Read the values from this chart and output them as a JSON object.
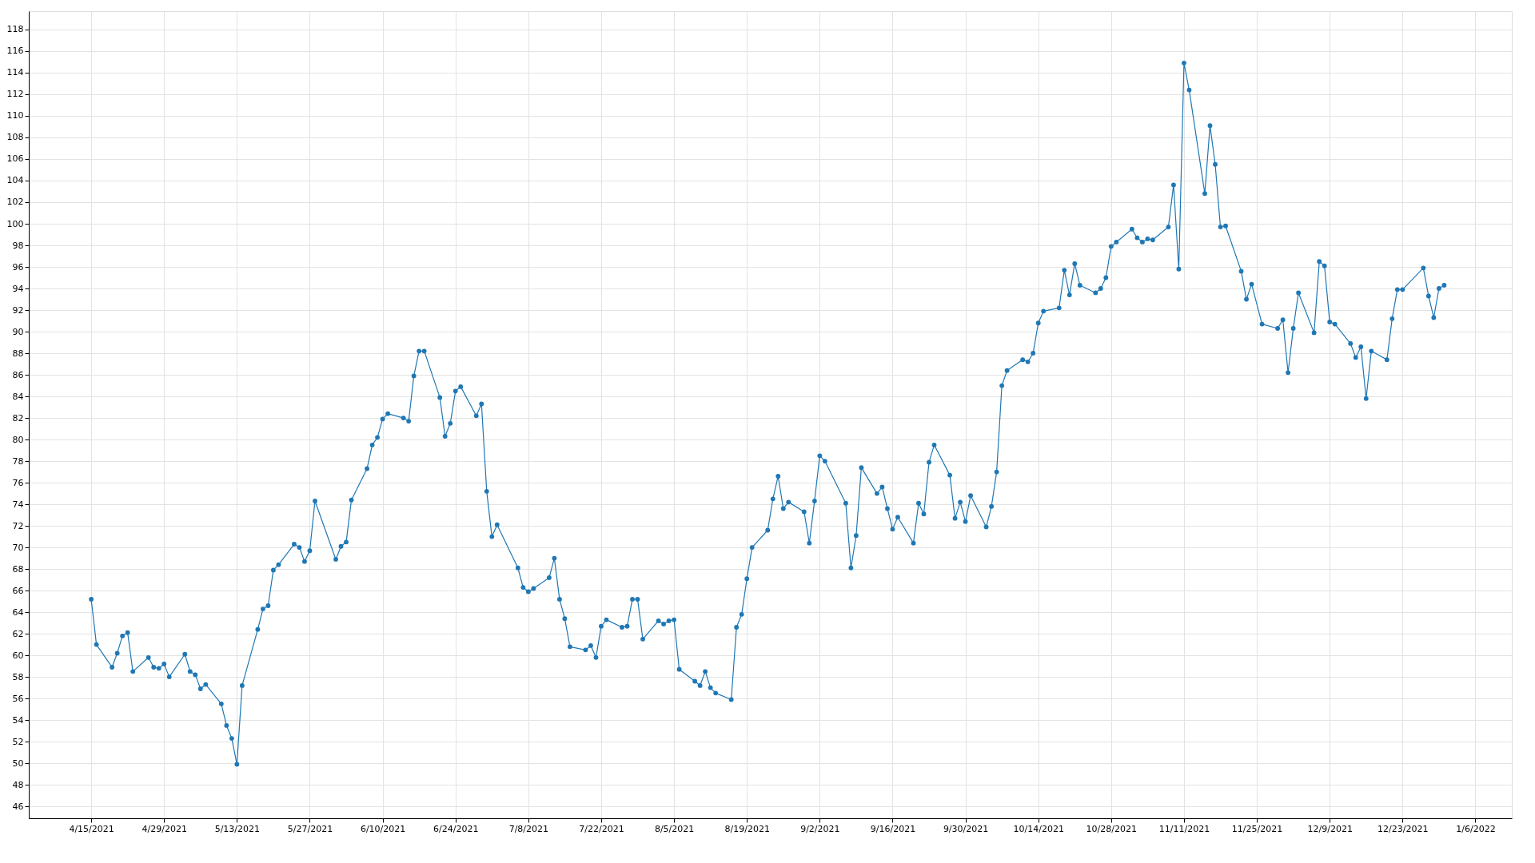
{
  "chart_data": {
    "type": "line",
    "marker": "circle",
    "line_style": "solid",
    "grid": true,
    "legend": false,
    "xlim": [
      "2021-04-03",
      "2022-01-13"
    ],
    "ylim": [
      44.9,
      119.7
    ],
    "xticks": [
      {
        "value": "2021-04-15",
        "label": "4/15/2021"
      },
      {
        "value": "2021-04-29",
        "label": "4/29/2021"
      },
      {
        "value": "2021-05-13",
        "label": "5/13/2021"
      },
      {
        "value": "2021-05-27",
        "label": "5/27/2021"
      },
      {
        "value": "2021-06-10",
        "label": "6/10/2021"
      },
      {
        "value": "2021-06-24",
        "label": "6/24/2021"
      },
      {
        "value": "2021-07-08",
        "label": "7/8/2021"
      },
      {
        "value": "2021-07-22",
        "label": "7/22/2021"
      },
      {
        "value": "2021-08-05",
        "label": "8/5/2021"
      },
      {
        "value": "2021-08-19",
        "label": "8/19/2021"
      },
      {
        "value": "2021-09-02",
        "label": "9/2/2021"
      },
      {
        "value": "2021-09-16",
        "label": "9/16/2021"
      },
      {
        "value": "2021-09-30",
        "label": "9/30/2021"
      },
      {
        "value": "2021-10-14",
        "label": "10/14/2021"
      },
      {
        "value": "2021-10-28",
        "label": "10/28/2021"
      },
      {
        "value": "2021-11-11",
        "label": "11/11/2021"
      },
      {
        "value": "2021-11-25",
        "label": "11/25/2021"
      },
      {
        "value": "2021-12-09",
        "label": "12/9/2021"
      },
      {
        "value": "2021-12-23",
        "label": "12/23/2021"
      },
      {
        "value": "2022-01-06",
        "label": "1/6/2022"
      }
    ],
    "yticks": [
      46,
      48,
      50,
      52,
      54,
      56,
      58,
      60,
      62,
      64,
      66,
      68,
      70,
      72,
      74,
      76,
      78,
      80,
      82,
      84,
      86,
      88,
      90,
      92,
      94,
      96,
      98,
      100,
      102,
      104,
      106,
      108,
      110,
      112,
      114,
      116,
      118
    ],
    "x": [
      "2021-04-15",
      "2021-04-16",
      "2021-04-19",
      "2021-04-20",
      "2021-04-21",
      "2021-04-22",
      "2021-04-23",
      "2021-04-26",
      "2021-04-27",
      "2021-04-28",
      "2021-04-29",
      "2021-04-30",
      "2021-05-03",
      "2021-05-04",
      "2021-05-05",
      "2021-05-06",
      "2021-05-07",
      "2021-05-10",
      "2021-05-11",
      "2021-05-12",
      "2021-05-13",
      "2021-05-14",
      "2021-05-17",
      "2021-05-18",
      "2021-05-19",
      "2021-05-20",
      "2021-05-21",
      "2021-05-24",
      "2021-05-25",
      "2021-05-26",
      "2021-05-27",
      "2021-05-28",
      "2021-06-01",
      "2021-06-02",
      "2021-06-03",
      "2021-06-04",
      "2021-06-07",
      "2021-06-08",
      "2021-06-09",
      "2021-06-10",
      "2021-06-11",
      "2021-06-14",
      "2021-06-15",
      "2021-06-16",
      "2021-06-17",
      "2021-06-18",
      "2021-06-21",
      "2021-06-22",
      "2021-06-23",
      "2021-06-24",
      "2021-06-25",
      "2021-06-28",
      "2021-06-29",
      "2021-06-30",
      "2021-07-01",
      "2021-07-02",
      "2021-07-06",
      "2021-07-07",
      "2021-07-08",
      "2021-07-09",
      "2021-07-12",
      "2021-07-13",
      "2021-07-14",
      "2021-07-15",
      "2021-07-16",
      "2021-07-19",
      "2021-07-20",
      "2021-07-21",
      "2021-07-22",
      "2021-07-23",
      "2021-07-26",
      "2021-07-27",
      "2021-07-28",
      "2021-07-29",
      "2021-07-30",
      "2021-08-02",
      "2021-08-03",
      "2021-08-04",
      "2021-08-05",
      "2021-08-06",
      "2021-08-09",
      "2021-08-10",
      "2021-08-11",
      "2021-08-12",
      "2021-08-13",
      "2021-08-16",
      "2021-08-17",
      "2021-08-18",
      "2021-08-19",
      "2021-08-20",
      "2021-08-23",
      "2021-08-24",
      "2021-08-25",
      "2021-08-26",
      "2021-08-27",
      "2021-08-30",
      "2021-08-31",
      "2021-09-01",
      "2021-09-02",
      "2021-09-03",
      "2021-09-07",
      "2021-09-08",
      "2021-09-09",
      "2021-09-10",
      "2021-09-13",
      "2021-09-14",
      "2021-09-15",
      "2021-09-16",
      "2021-09-17",
      "2021-09-20",
      "2021-09-21",
      "2021-09-22",
      "2021-09-23",
      "2021-09-24",
      "2021-09-27",
      "2021-09-28",
      "2021-09-29",
      "2021-09-30",
      "2021-10-01",
      "2021-10-04",
      "2021-10-05",
      "2021-10-06",
      "2021-10-07",
      "2021-10-08",
      "2021-10-11",
      "2021-10-12",
      "2021-10-13",
      "2021-10-14",
      "2021-10-15",
      "2021-10-18",
      "2021-10-19",
      "2021-10-20",
      "2021-10-21",
      "2021-10-22",
      "2021-10-25",
      "2021-10-26",
      "2021-10-27",
      "2021-10-28",
      "2021-10-29",
      "2021-11-01",
      "2021-11-02",
      "2021-11-03",
      "2021-11-04",
      "2021-11-05",
      "2021-11-08",
      "2021-11-09",
      "2021-11-10",
      "2021-11-11",
      "2021-11-12",
      "2021-11-15",
      "2021-11-16",
      "2021-11-17",
      "2021-11-18",
      "2021-11-19",
      "2021-11-22",
      "2021-11-23",
      "2021-11-24",
      "2021-11-26",
      "2021-11-29",
      "2021-11-30",
      "2021-12-01",
      "2021-12-02",
      "2021-12-03",
      "2021-12-06",
      "2021-12-07",
      "2021-12-08",
      "2021-12-09",
      "2021-12-10",
      "2021-12-13",
      "2021-12-14",
      "2021-12-15",
      "2021-12-16",
      "2021-12-17",
      "2021-12-20",
      "2021-12-21",
      "2021-12-22",
      "2021-12-23",
      "2021-12-27",
      "2021-12-28",
      "2021-12-29",
      "2021-12-30",
      "2021-12-31"
    ],
    "series": [
      {
        "color": "#1f77b4",
        "values": [
          65.2,
          61.0,
          58.9,
          60.2,
          61.8,
          62.1,
          58.5,
          59.8,
          58.9,
          58.8,
          59.2,
          58.0,
          60.1,
          58.5,
          58.2,
          56.9,
          57.3,
          55.5,
          53.5,
          52.3,
          49.9,
          57.2,
          62.4,
          64.3,
          64.6,
          67.9,
          68.4,
          70.3,
          70.0,
          68.7,
          69.7,
          74.3,
          68.9,
          70.1,
          70.5,
          74.4,
          77.3,
          79.5,
          80.2,
          81.9,
          82.4,
          82.0,
          81.7,
          85.9,
          88.2,
          88.2,
          83.9,
          80.3,
          81.5,
          84.5,
          84.9,
          82.2,
          83.3,
          75.2,
          71.0,
          72.1,
          68.1,
          66.3,
          65.9,
          66.2,
          67.2,
          69.0,
          65.2,
          63.4,
          60.8,
          60.5,
          60.9,
          59.8,
          62.7,
          63.3,
          62.6,
          62.7,
          65.2,
          65.2,
          61.5,
          63.2,
          62.9,
          63.2,
          63.3,
          58.7,
          57.6,
          57.2,
          58.5,
          57.0,
          56.5,
          55.9,
          62.6,
          63.8,
          67.1,
          70.0,
          71.6,
          74.5,
          76.6,
          73.6,
          74.2,
          73.3,
          70.4,
          74.3,
          78.5,
          78.0,
          74.1,
          68.1,
          71.1,
          77.4,
          75.0,
          75.6,
          73.6,
          71.7,
          72.8,
          70.4,
          74.1,
          73.1,
          77.9,
          79.5,
          76.7,
          72.7,
          74.2,
          72.4,
          74.8,
          71.9,
          73.8,
          77.0,
          85.0,
          86.4,
          87.4,
          87.2,
          88.0,
          90.8,
          91.9,
          92.2,
          95.7,
          93.4,
          96.3,
          94.3,
          93.6,
          94.0,
          95.0,
          97.9,
          98.3,
          99.5,
          98.7,
          98.3,
          98.6,
          98.5,
          99.7,
          103.6,
          95.8,
          114.9,
          112.4,
          102.8,
          109.1,
          105.5,
          99.7,
          99.8,
          95.6,
          93.0,
          94.4,
          90.7,
          90.3,
          91.1,
          86.2,
          90.3,
          93.6,
          89.9,
          96.5,
          96.1,
          90.9,
          90.7,
          88.9,
          87.6,
          88.6,
          83.8,
          88.2,
          87.4,
          91.2,
          93.9,
          93.9,
          95.9,
          93.3,
          91.3,
          94.0,
          94.3
        ]
      }
    ]
  }
}
